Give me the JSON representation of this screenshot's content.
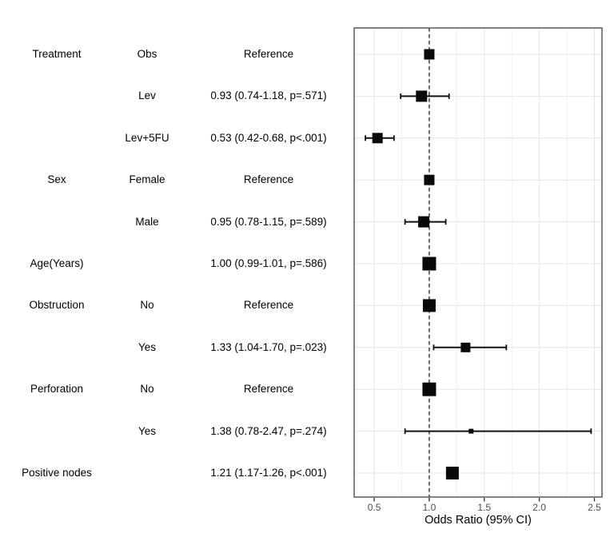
{
  "page": {
    "background": "#ffffff"
  },
  "chart_data": {
    "type": "forest",
    "title": "",
    "xlabel": "Odds Ratio (95% CI)",
    "x_ticks": [
      0.5,
      1.0,
      1.5,
      2.0,
      2.5
    ],
    "x_tick_labels": [
      "0.5",
      "1.0",
      "1.5",
      "2.0",
      "2.5"
    ],
    "x_minor_ticks": [
      0.75,
      1.25,
      1.75,
      2.25
    ],
    "xlim": [
      0.318,
      2.569
    ],
    "reference_line": 1.0,
    "grid": "on",
    "legend": "none",
    "columns": [
      "variable",
      "level",
      "estimate_text"
    ],
    "rows": [
      {
        "variable": "Treatment",
        "level": "Obs",
        "estimate_text": "Reference",
        "or": 1.0,
        "lo": null,
        "hi": null,
        "p": null,
        "reference": true,
        "marker_size": 13
      },
      {
        "variable": "",
        "level": "Lev",
        "estimate_text": "0.93 (0.74-1.18, p=.571)",
        "or": 0.93,
        "lo": 0.74,
        "hi": 1.18,
        "p": ".571",
        "reference": false,
        "marker_size": 14
      },
      {
        "variable": "",
        "level": "Lev+5FU",
        "estimate_text": "0.53 (0.42-0.68, p<.001)",
        "or": 0.53,
        "lo": 0.42,
        "hi": 0.68,
        "p": "<.001",
        "reference": false,
        "marker_size": 13
      },
      {
        "variable": "Sex",
        "level": "Female",
        "estimate_text": "Reference",
        "or": 1.0,
        "lo": null,
        "hi": null,
        "p": null,
        "reference": true,
        "marker_size": 13
      },
      {
        "variable": "",
        "level": "Male",
        "estimate_text": "0.95 (0.78-1.15, p=.589)",
        "or": 0.95,
        "lo": 0.78,
        "hi": 1.15,
        "p": ".589",
        "reference": false,
        "marker_size": 14
      },
      {
        "variable": "Age(Years)",
        "level": "",
        "estimate_text": "1.00 (0.99-1.01, p=.586)",
        "or": 1.0,
        "lo": 0.99,
        "hi": 1.01,
        "p": ".586",
        "reference": false,
        "marker_size": 17
      },
      {
        "variable": "Obstruction",
        "level": "No",
        "estimate_text": "Reference",
        "or": 1.0,
        "lo": null,
        "hi": null,
        "p": null,
        "reference": true,
        "marker_size": 16
      },
      {
        "variable": "",
        "level": "Yes",
        "estimate_text": "1.33 (1.04-1.70, p=.023)",
        "or": 1.33,
        "lo": 1.04,
        "hi": 1.7,
        "p": ".023",
        "reference": false,
        "marker_size": 12
      },
      {
        "variable": "Perforation",
        "level": "No",
        "estimate_text": "Reference",
        "or": 1.0,
        "lo": null,
        "hi": null,
        "p": null,
        "reference": true,
        "marker_size": 17
      },
      {
        "variable": "",
        "level": "Yes",
        "estimate_text": "1.38 (0.78-2.47, p=.274)",
        "or": 1.38,
        "lo": 0.78,
        "hi": 2.47,
        "p": ".274",
        "reference": false,
        "marker_size": 6
      },
      {
        "variable": "Positive nodes",
        "level": "",
        "estimate_text": "1.21 (1.17-1.26, p<.001)",
        "or": 1.21,
        "lo": 1.17,
        "hi": 1.26,
        "p": "<.001",
        "reference": false,
        "marker_size": 16
      }
    ],
    "colors": {
      "marker": "#0a0a0a",
      "ci_line": "#111111",
      "reference_line": "#2e2e2e",
      "grid_major": "#e4e4e4",
      "grid_minor": "#efefef",
      "panel_border": "#595959",
      "axis_tick": "#333333",
      "axis_text": "#4d4d4d",
      "axis_title": "#000000",
      "row_text": "#000000"
    }
  }
}
